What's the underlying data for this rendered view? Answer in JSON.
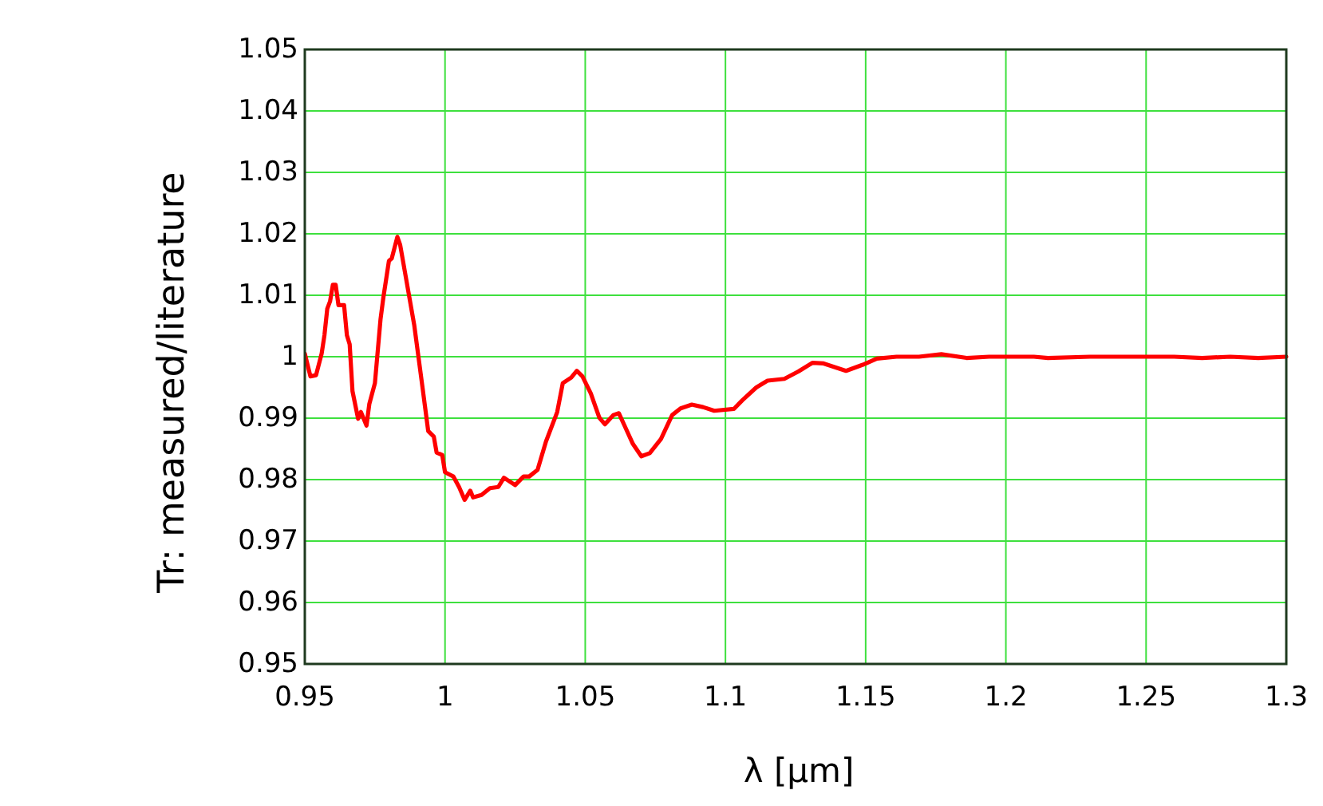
{
  "chart_data": {
    "type": "line",
    "xlabel": "λ [µm]",
    "ylabel": "Tr: measured/literature",
    "xlim": [
      0.95,
      1.3
    ],
    "ylim": [
      0.95,
      1.05
    ],
    "xticks": [
      0.95,
      1,
      1.05,
      1.1,
      1.15,
      1.2,
      1.25,
      1.3
    ],
    "yticks": [
      0.95,
      0.96,
      0.97,
      0.98,
      0.99,
      1,
      1.01,
      1.02,
      1.03,
      1.04,
      1.05
    ],
    "grid": true,
    "marker": "none",
    "line_style": "solid",
    "x": [
      0.95,
      0.952,
      0.954,
      0.956,
      0.957,
      0.958,
      0.959,
      0.96,
      0.961,
      0.962,
      0.964,
      0.965,
      0.966,
      0.967,
      0.969,
      0.97,
      0.972,
      0.973,
      0.975,
      0.977,
      0.978,
      0.98,
      0.981,
      0.983,
      0.984,
      0.986,
      0.989,
      0.992,
      0.994,
      0.996,
      0.997,
      0.999,
      1.0,
      1.003,
      1.005,
      1.007,
      1.009,
      1.01,
      1.013,
      1.016,
      1.019,
      1.021,
      1.025,
      1.028,
      1.03,
      1.033,
      1.036,
      1.04,
      1.042,
      1.045,
      1.047,
      1.049,
      1.052,
      1.055,
      1.057,
      1.06,
      1.062,
      1.064,
      1.067,
      1.07,
      1.073,
      1.077,
      1.081,
      1.084,
      1.088,
      1.092,
      1.096,
      1.103,
      1.106,
      1.111,
      1.115,
      1.121,
      1.126,
      1.131,
      1.135,
      1.143,
      1.149,
      1.154,
      1.161,
      1.169,
      1.177,
      1.186,
      1.194,
      1.21,
      1.215,
      1.23,
      1.26,
      1.27,
      1.28,
      1.29,
      1.3
    ],
    "series": [
      {
        "color": "#ff0000",
        "values": [
          1.0005,
          0.9968,
          0.997,
          1.0005,
          1.0035,
          1.0078,
          1.009,
          1.0117,
          1.0117,
          1.0084,
          1.0084,
          1.0035,
          1.002,
          0.9944,
          0.9899,
          0.991,
          0.9888,
          0.9923,
          0.9957,
          1.0061,
          1.0096,
          1.0156,
          1.016,
          1.0195,
          1.0182,
          1.013,
          1.0052,
          0.9949,
          0.9879,
          0.987,
          0.9844,
          0.984,
          0.9812,
          0.9805,
          0.9788,
          0.9767,
          0.9782,
          0.9771,
          0.9775,
          0.9786,
          0.9788,
          0.9803,
          0.9791,
          0.9805,
          0.9805,
          0.9816,
          0.9862,
          0.991,
          0.9957,
          0.9966,
          0.9977,
          0.9968,
          0.994,
          0.9901,
          0.989,
          0.9905,
          0.9908,
          0.9888,
          0.9858,
          0.9838,
          0.9843,
          0.9866,
          0.9905,
          0.9916,
          0.9922,
          0.9918,
          0.9912,
          0.9915,
          0.9929,
          0.995,
          0.9961,
          0.9964,
          0.9976,
          0.999,
          0.9989,
          0.9977,
          0.9987,
          0.9997,
          1.0,
          1.0,
          1.0004,
          0.9998,
          1.0,
          1.0,
          0.9998,
          1.0,
          1.0,
          0.9998,
          1.0,
          0.9998,
          1.0
        ]
      }
    ]
  }
}
